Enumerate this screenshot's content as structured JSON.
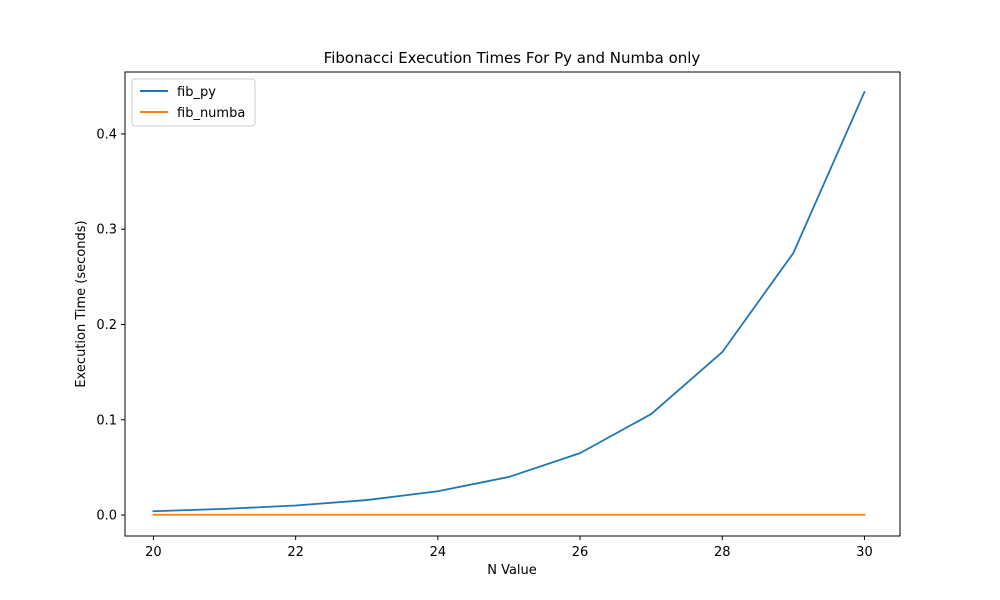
{
  "chart_data": {
    "type": "line",
    "title": "Fibonacci Execution Times For Py and Numba only",
    "xlabel": "N Value",
    "ylabel": "Execution Time (seconds)",
    "x": [
      20,
      21,
      22,
      23,
      24,
      25,
      26,
      27,
      28,
      29,
      30
    ],
    "xlim": [
      19.6,
      30.5
    ],
    "ylim": [
      -0.022,
      0.465
    ],
    "xticks": [
      20,
      22,
      24,
      26,
      28,
      30
    ],
    "yticks": [
      0.0,
      0.1,
      0.2,
      0.3,
      0.4
    ],
    "xtick_labels": [
      "20",
      "22",
      "24",
      "26",
      "28",
      "30"
    ],
    "ytick_labels": [
      "0.0",
      "0.1",
      "0.2",
      "0.3",
      "0.4"
    ],
    "grid": false,
    "legend_position": "top-left",
    "series": [
      {
        "name": "fib_py",
        "color": "#1f77b4",
        "values": [
          0.004,
          0.0065,
          0.01,
          0.0157,
          0.025,
          0.04,
          0.065,
          0.106,
          0.171,
          0.275,
          0.444
        ]
      },
      {
        "name": "fib_numba",
        "color": "#ff7f0e",
        "values": [
          0.0003,
          0.0003,
          0.0003,
          0.0003,
          0.0003,
          0.0003,
          0.0003,
          0.0003,
          0.0003,
          0.0003,
          0.0003
        ]
      }
    ]
  }
}
